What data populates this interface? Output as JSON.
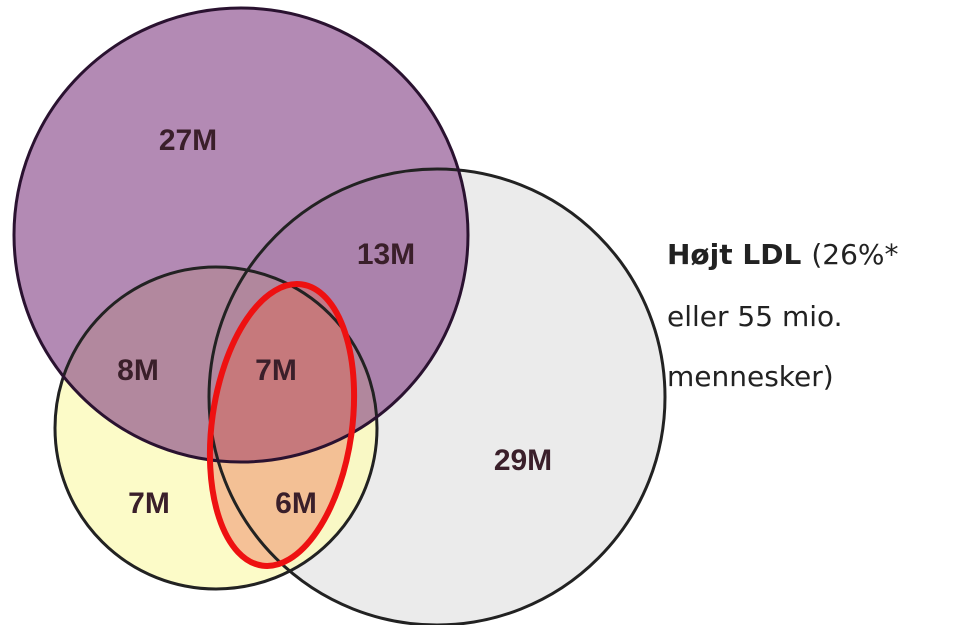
{
  "regions": [
    {
      "label": "27M"
    },
    {
      "label": "13M"
    },
    {
      "label": "8M"
    },
    {
      "label": "7M"
    },
    {
      "label": "29M"
    },
    {
      "label": "7M"
    },
    {
      "label": "6M"
    }
  ],
  "legend": {
    "title": "Højt LDL",
    "detail": "(26%*",
    "lines": [
      "eller 55 mio.",
      "mennesker)"
    ]
  }
}
